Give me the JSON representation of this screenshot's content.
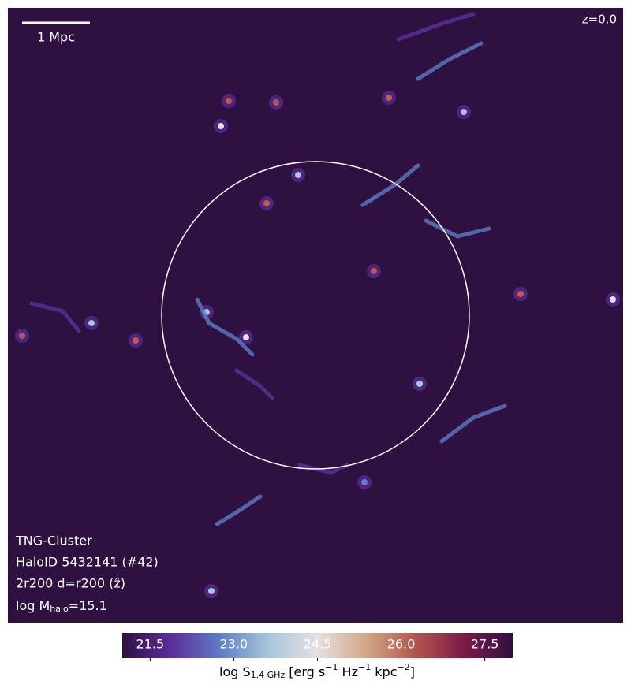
{
  "chart_data": {
    "type": "image",
    "scale_bar_label": "1 Mpc",
    "redshift_label": "z=0.0",
    "annotations": [
      "TNG-Cluster",
      "HaloID 5432141 (#42)",
      "2r200 d=r200 (ẑ)"
    ],
    "mass_label": {
      "prefix": "log M",
      "sub": "halo",
      "suffix": "=15.1"
    },
    "colorbar": {
      "label": {
        "prefix": "log S",
        "sub": "1.4 GHz",
        "unit": [
          " [erg s",
          "−1",
          " Hz",
          "−1",
          " kpc",
          "−2",
          "]"
        ]
      },
      "clim": [
        21,
        28
      ],
      "ticks": [
        21.5,
        {
          "value": 23,
          "label": "23.0"
        },
        24.5,
        {
          "value": 26,
          "label": "26.0"
        },
        27.5
      ],
      "colormap": [
        "#2e1141",
        "#5b2e9a",
        "#5e7cc4",
        "#a9c6da",
        "#e6e0e4",
        "#d2a786",
        "#b3564e",
        "#7d1a47",
        "#2e1141"
      ]
    }
  }
}
